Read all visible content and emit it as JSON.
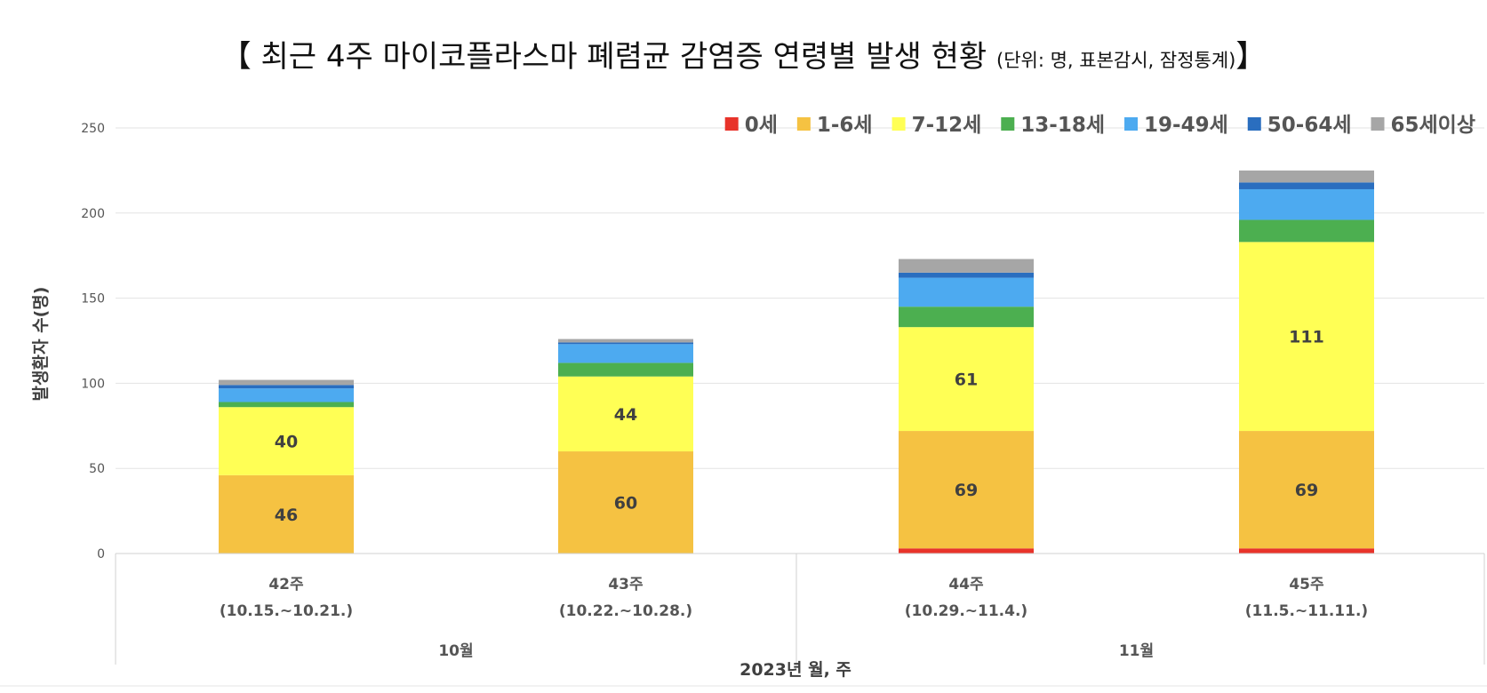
{
  "chart_data": {
    "type": "bar",
    "stacked": true,
    "title_open": "【",
    "title": "최근 4주 마이코플라스마 폐렴균 감염증 연령별 발생 현황",
    "unit_note": "(단위: 명, 표본감시, 잠정통계)",
    "title_close": "】",
    "ylabel": "발생환자 수(명)",
    "xlabel": "2023년 월, 주",
    "ylim": [
      0,
      250
    ],
    "yticks": [
      0,
      50,
      100,
      150,
      200,
      250
    ],
    "ytick_labels": [
      "0",
      "50",
      "100",
      "150",
      "200",
      "250"
    ],
    "grid": true,
    "legend_position": "top-right",
    "categories": [
      "42주",
      "43주",
      "44주",
      "45주"
    ],
    "category_dates": [
      "(10.15.~10.21.)",
      "(10.22.~10.28.)",
      "(10.29.~11.4.)",
      "(11.5.~11.11.)"
    ],
    "month_groups": [
      {
        "label": "10월",
        "categories": [
          0,
          1
        ]
      },
      {
        "label": "11월",
        "categories": [
          2,
          3
        ]
      }
    ],
    "series": [
      {
        "name": "0세",
        "color": "#e8332a",
        "values": [
          0,
          0,
          3,
          3
        ]
      },
      {
        "name": "1-6세",
        "color": "#f5c242",
        "values": [
          46,
          60,
          69,
          69
        ]
      },
      {
        "name": "7-12세",
        "color": "#ffff55",
        "values": [
          40,
          44,
          61,
          111
        ]
      },
      {
        "name": "13-18세",
        "color": "#4caf50",
        "values": [
          3,
          8,
          12,
          13
        ]
      },
      {
        "name": "19-49세",
        "color": "#4daaf0",
        "values": [
          8,
          11,
          17,
          18
        ]
      },
      {
        "name": "50-64세",
        "color": "#2a6ebf",
        "values": [
          2,
          1,
          3,
          4
        ]
      },
      {
        "name": "65세이상",
        "color": "#a6a6a6",
        "values": [
          3,
          2,
          8,
          7
        ]
      }
    ],
    "data_labels": [
      {
        "series": "1-6세",
        "values": [
          "46",
          "60",
          "69",
          "69"
        ]
      },
      {
        "series": "7-12세",
        "values": [
          "40",
          "44",
          "61",
          "111"
        ]
      }
    ]
  }
}
